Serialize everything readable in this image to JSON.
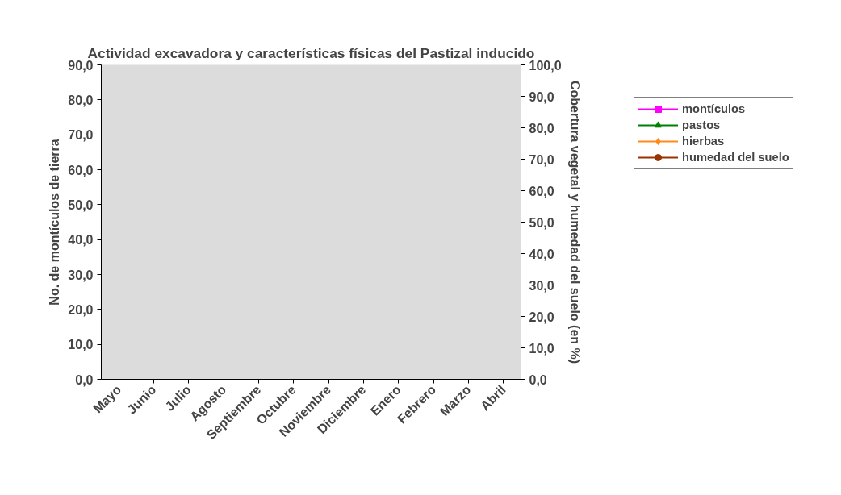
{
  "chart_data": {
    "type": "line",
    "title": "Actividad excavadora y características físicas del Pastizal inducido",
    "ylabel": "No. de montículos de tierra",
    "y2label": "Cobertura vegetal y humedad del suelo (en %)",
    "categories": [
      "Mayo",
      "Junio",
      "Julio",
      "Agosto",
      "Septiembre",
      "Octubre",
      "Noviembre",
      "Diciembre",
      "Enero",
      "Febrero",
      "Marzo",
      "Abril"
    ],
    "ylim": [
      0,
      90
    ],
    "yticks": [
      {
        "value": 0,
        "label": "0,0"
      },
      {
        "value": 10,
        "label": "10,0"
      },
      {
        "value": 20,
        "label": "20,0"
      },
      {
        "value": 30,
        "label": "30,0"
      },
      {
        "value": 40,
        "label": "40,0"
      },
      {
        "value": 50,
        "label": "50,0"
      },
      {
        "value": 60,
        "label": "60,0"
      },
      {
        "value": 70,
        "label": "70,0"
      },
      {
        "value": 80,
        "label": "80,0"
      },
      {
        "value": 90,
        "label": "90,0"
      }
    ],
    "y2lim": [
      0,
      100
    ],
    "y2ticks": [
      {
        "value": 0,
        "label": "0,0"
      },
      {
        "value": 10,
        "label": "10,0"
      },
      {
        "value": 20,
        "label": "20,0"
      },
      {
        "value": 30,
        "label": "30,0"
      },
      {
        "value": 40,
        "label": "40,0"
      },
      {
        "value": 50,
        "label": "50,0"
      },
      {
        "value": 60,
        "label": "60,0"
      },
      {
        "value": 70,
        "label": "70,0"
      },
      {
        "value": 80,
        "label": "80,0"
      },
      {
        "value": 90,
        "label": "90,0"
      },
      {
        "value": 100,
        "label": "100,0"
      }
    ],
    "legend": "right",
    "grid": false,
    "series": [
      {
        "name": "montículos",
        "color": "#ff00ff",
        "marker": "square",
        "values": [
          null,
          null,
          null,
          null,
          null,
          null,
          null,
          null,
          null,
          null,
          null,
          null
        ]
      },
      {
        "name": "pastos",
        "color": "#008000",
        "marker": "triangle",
        "values": [
          null,
          null,
          null,
          null,
          null,
          null,
          null,
          null,
          null,
          null,
          null,
          null
        ]
      },
      {
        "name": "hierbas",
        "color": "#ff8c1a",
        "marker": "diamond",
        "values": [
          null,
          null,
          null,
          null,
          null,
          null,
          null,
          null,
          null,
          null,
          null,
          null
        ]
      },
      {
        "name": "humedad del suelo",
        "color": "#993300",
        "marker": "circle",
        "values": [
          null,
          null,
          null,
          null,
          null,
          null,
          null,
          null,
          null,
          null,
          null,
          null
        ]
      }
    ]
  }
}
